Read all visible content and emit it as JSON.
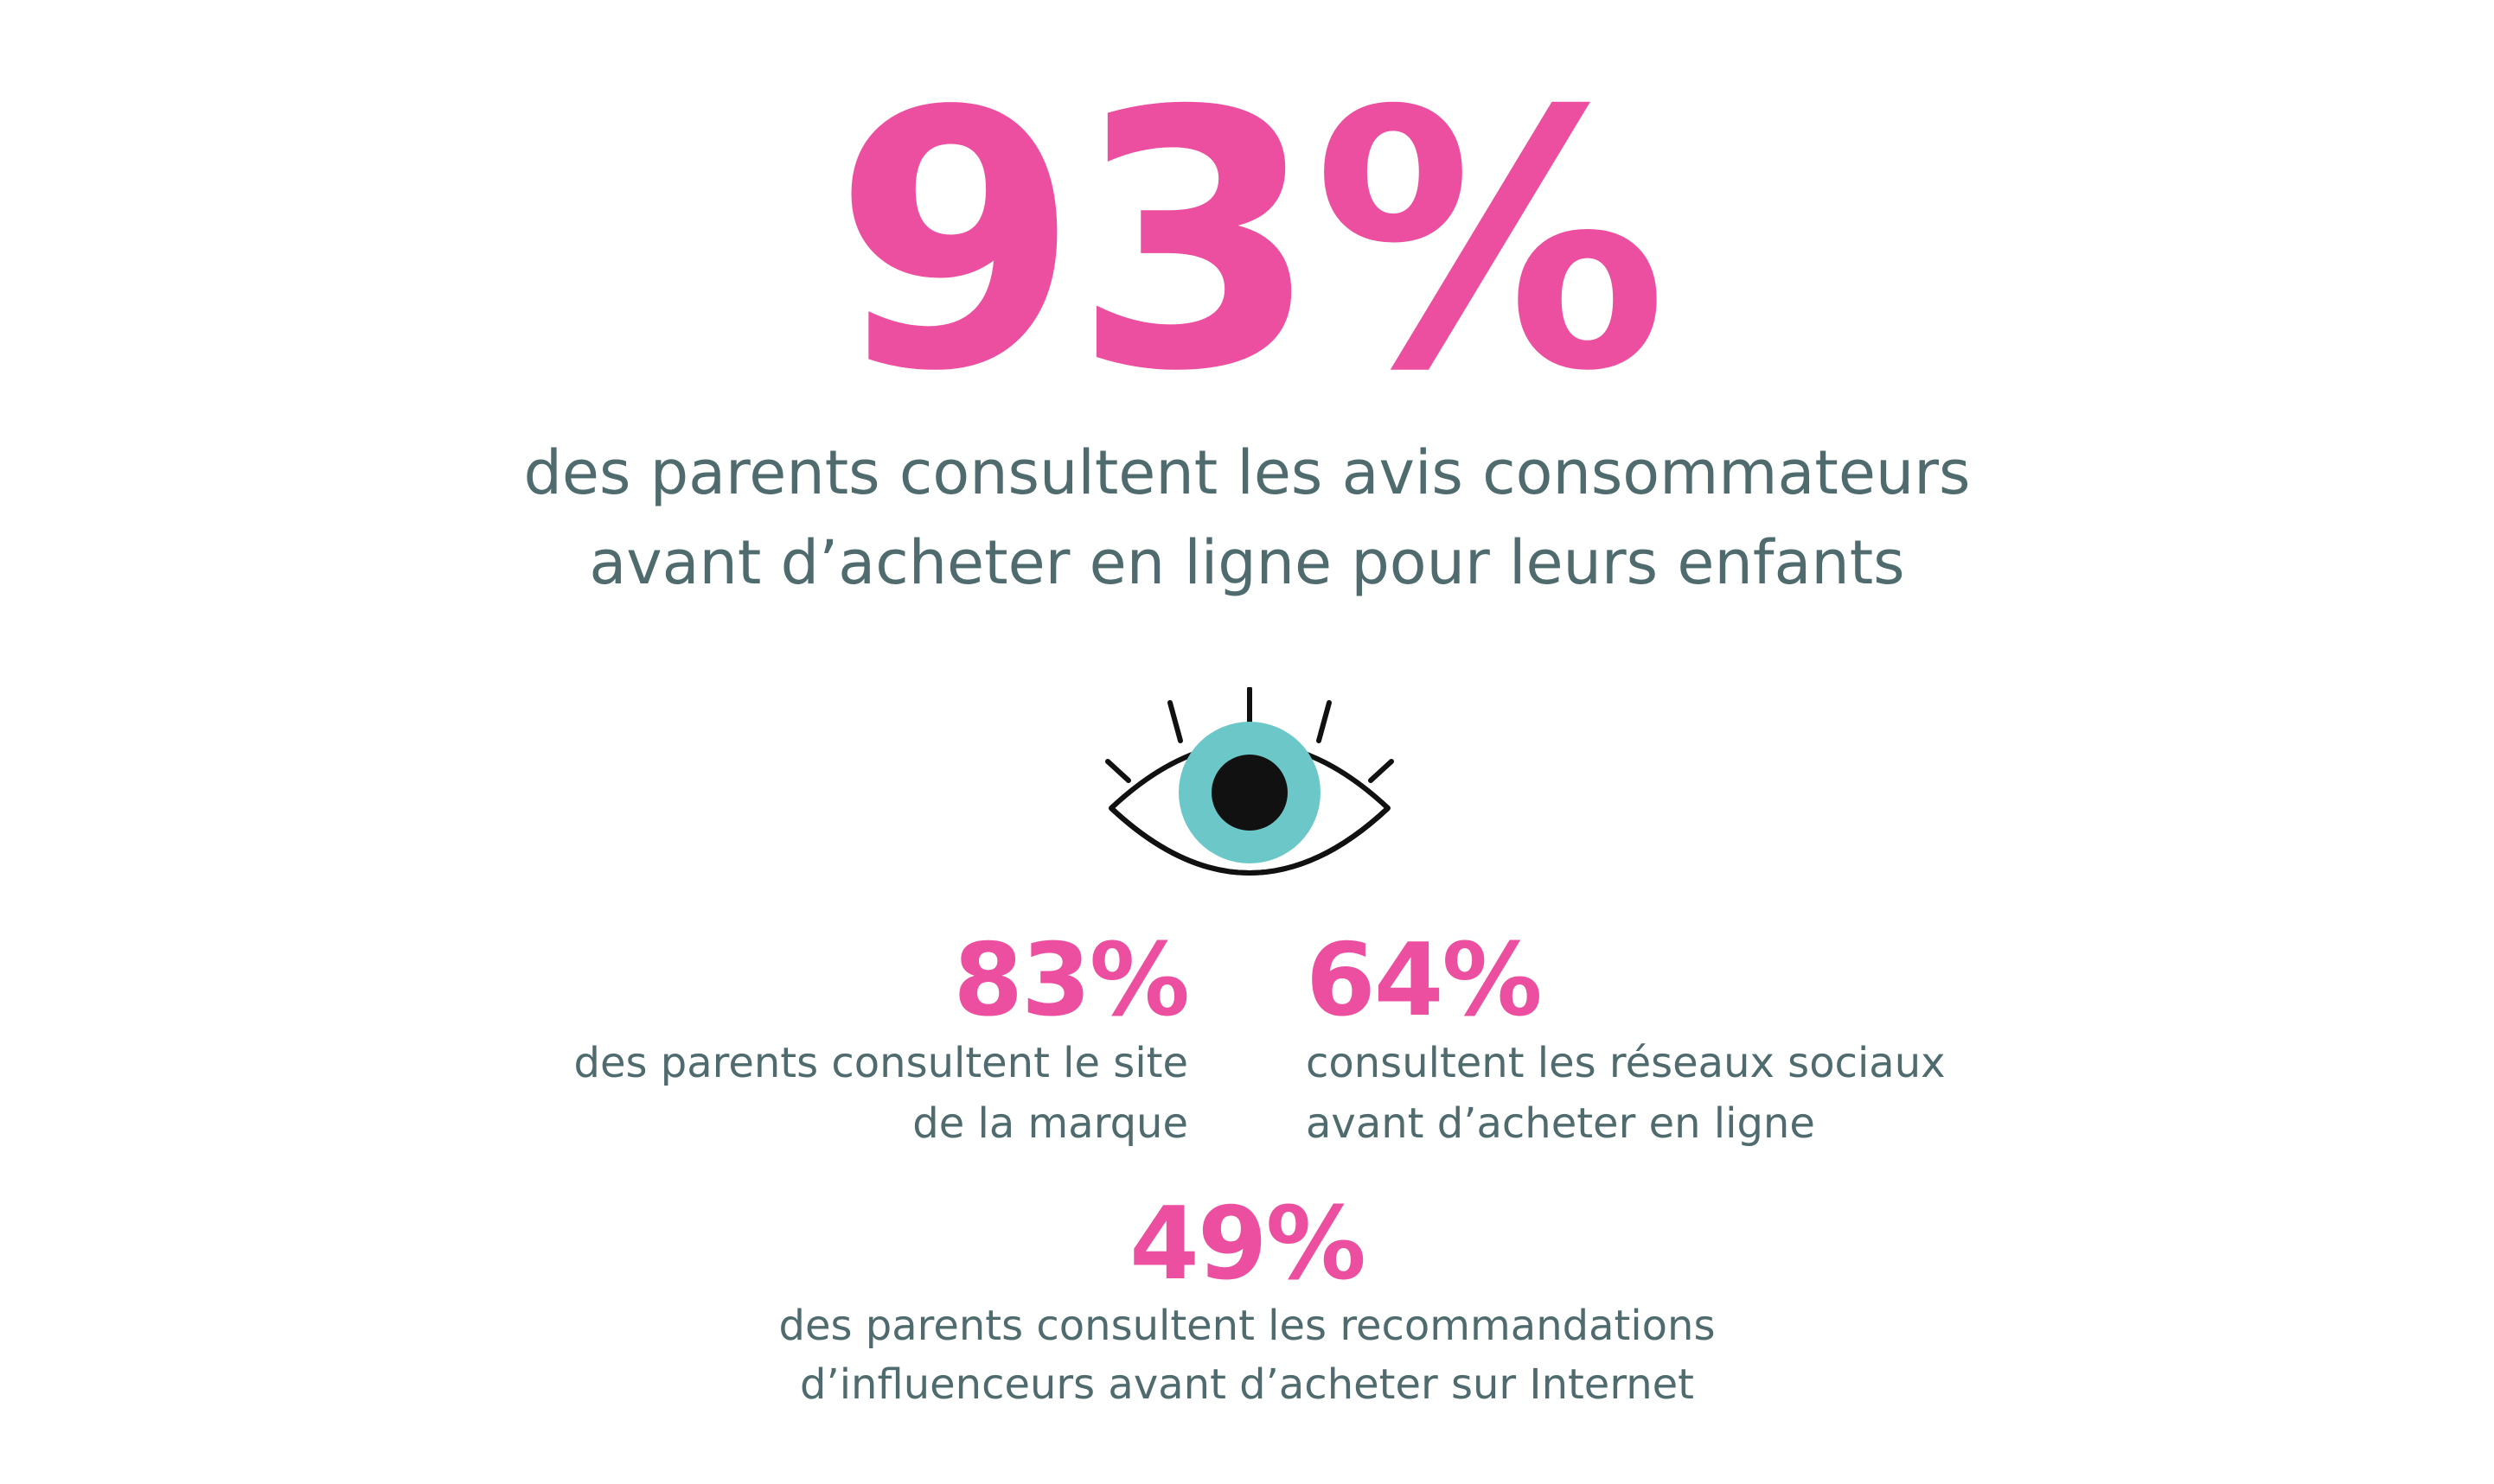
{
  "headline": {
    "value": "93%",
    "lines": [
      "des parents consultent les avis consommateurs",
      "avant d’acheter en ligne pour leurs enfants"
    ]
  },
  "icon": {
    "name": "eye-icon",
    "colors": {
      "outline": "#111111",
      "iris": "#6cc8c8",
      "pupil": "#111111"
    }
  },
  "stats": [
    {
      "value": "83%",
      "lines": [
        "des parents consultent le site",
        "de la marque"
      ]
    },
    {
      "value": "64%",
      "lines": [
        "consultent les réseaux sociaux",
        "avant d’acheter en ligne"
      ]
    },
    {
      "value": "49%",
      "lines": [
        "des parents consultent les recommandations",
        "d’influenceurs avant d’acheter sur Internet"
      ]
    }
  ],
  "colors": {
    "accent": "#ec4f9f",
    "text": "#4f6b6e",
    "background": "#ffffff"
  }
}
